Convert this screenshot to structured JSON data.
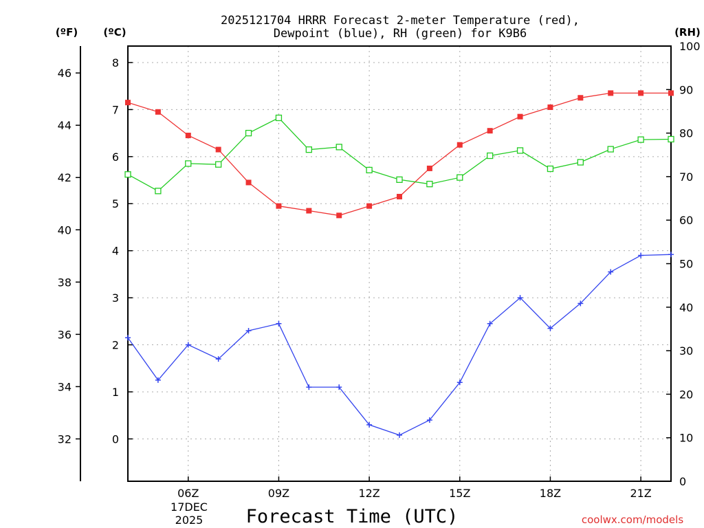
{
  "chart_data": {
    "type": "line",
    "title_line1": "2025121704 HRRR Forecast 2-meter Temperature (red),",
    "title_line2": "Dewpoint (blue), RH (green) for K9B6",
    "xlabel": "Forecast Time (UTC)",
    "date_label_line1": "17DEC",
    "date_label_line2": "2025",
    "left_axis_unit_f": "(ºF)",
    "left_axis_unit_c": "(ºC)",
    "right_axis_unit": "(RH)",
    "watermark": "coolwx.com/models",
    "x_hours": [
      4,
      5,
      6,
      7,
      8,
      9,
      10,
      11,
      12,
      13,
      14,
      15,
      16,
      17,
      18,
      19,
      20,
      21,
      22
    ],
    "xlim": [
      4,
      22
    ],
    "x_ticks": [
      {
        "hour": 6,
        "label": "06Z"
      },
      {
        "hour": 9,
        "label": "09Z"
      },
      {
        "hour": 12,
        "label": "12Z"
      },
      {
        "hour": 15,
        "label": "15Z"
      },
      {
        "hour": 18,
        "label": "18Z"
      },
      {
        "hour": 21,
        "label": "21Z"
      }
    ],
    "celsius_axis": {
      "range": [
        -0.9,
        8.35
      ],
      "ticks": [
        "0",
        "1",
        "2",
        "3",
        "4",
        "5",
        "6",
        "7",
        "8"
      ]
    },
    "fahrenheit_axis": {
      "ticks": [
        "32",
        "34",
        "36",
        "38",
        "40",
        "42",
        "44",
        "46"
      ]
    },
    "rh_axis": {
      "range": [
        0,
        100
      ],
      "ticks": [
        "0",
        "10",
        "20",
        "30",
        "40",
        "50",
        "60",
        "70",
        "80",
        "90",
        "100"
      ]
    },
    "series": [
      {
        "name": "Temperature",
        "axis": "celsius",
        "color": "#ee3333",
        "marker": "filled-square",
        "values": [
          7.15,
          6.95,
          6.45,
          6.15,
          5.45,
          4.95,
          4.85,
          4.75,
          4.95,
          5.15,
          5.75,
          6.25,
          6.55,
          6.85,
          7.05,
          7.25,
          7.35,
          7.35,
          7.35
        ]
      },
      {
        "name": "Dewpoint",
        "axis": "celsius",
        "color": "#3344ee",
        "marker": "plus",
        "values": [
          2.15,
          1.25,
          2.0,
          1.7,
          2.3,
          2.45,
          1.1,
          1.1,
          0.3,
          0.08,
          0.4,
          1.2,
          2.45,
          3.0,
          2.35,
          2.88,
          3.55,
          3.9,
          3.92
        ]
      },
      {
        "name": "RH",
        "axis": "rh",
        "color": "#22cc22",
        "marker": "open-square",
        "values": [
          70.5,
          66.7,
          73.0,
          72.8,
          80.0,
          83.5,
          76.2,
          76.8,
          71.5,
          69.3,
          68.3,
          69.8,
          74.8,
          76.0,
          71.8,
          73.3,
          76.3,
          78.5,
          78.6
        ]
      }
    ]
  }
}
